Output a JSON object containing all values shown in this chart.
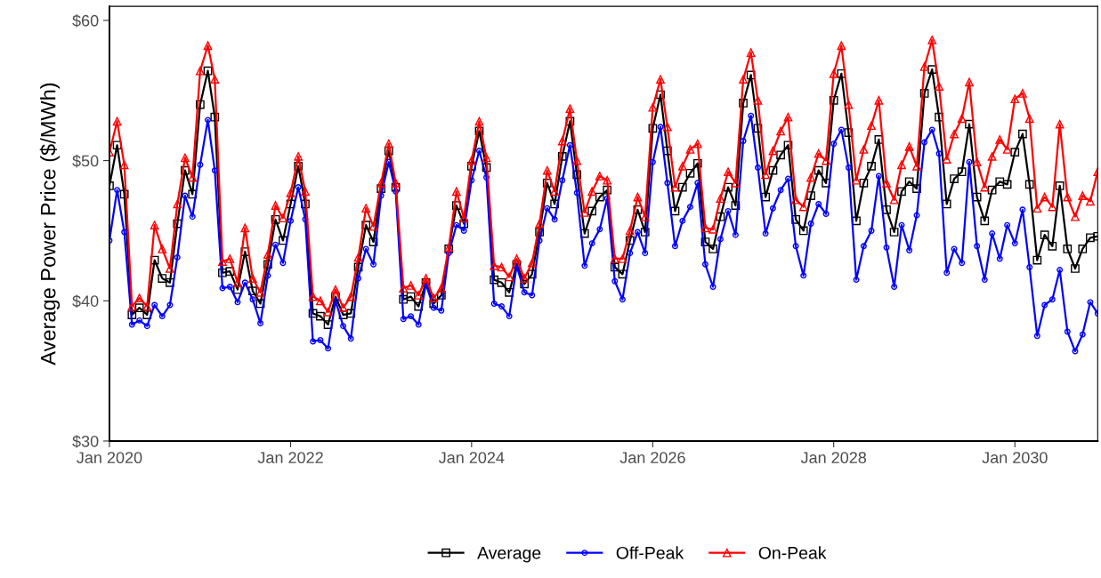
{
  "chart_data": {
    "type": "line",
    "ylabel": "Average Power Price ($/MWh)",
    "x": [
      "2020-01",
      "2020-02",
      "2020-03",
      "2020-04",
      "2020-05",
      "2020-06",
      "2020-07",
      "2020-08",
      "2020-09",
      "2020-10",
      "2020-11",
      "2020-12",
      "2021-01",
      "2021-02",
      "2021-03",
      "2021-04",
      "2021-05",
      "2021-06",
      "2021-07",
      "2021-08",
      "2021-09",
      "2021-10",
      "2021-11",
      "2021-12",
      "2022-01",
      "2022-02",
      "2022-03",
      "2022-04",
      "2022-05",
      "2022-06",
      "2022-07",
      "2022-08",
      "2022-09",
      "2022-10",
      "2022-11",
      "2022-12",
      "2023-01",
      "2023-02",
      "2023-03",
      "2023-04",
      "2023-05",
      "2023-06",
      "2023-07",
      "2023-08",
      "2023-09",
      "2023-10",
      "2023-11",
      "2023-12",
      "2024-01",
      "2024-02",
      "2024-03",
      "2024-04",
      "2024-05",
      "2024-06",
      "2024-07",
      "2024-08",
      "2024-09",
      "2024-10",
      "2024-11",
      "2024-12",
      "2025-01",
      "2025-02",
      "2025-03",
      "2025-04",
      "2025-05",
      "2025-06",
      "2025-07",
      "2025-08",
      "2025-09",
      "2025-10",
      "2025-11",
      "2025-12",
      "2026-01",
      "2026-02",
      "2026-03",
      "2026-04",
      "2026-05",
      "2026-06",
      "2026-07",
      "2026-08",
      "2026-09",
      "2026-10",
      "2026-11",
      "2026-12",
      "2027-01",
      "2027-02",
      "2027-03",
      "2027-04",
      "2027-05",
      "2027-06",
      "2027-07",
      "2027-08",
      "2027-09",
      "2027-10",
      "2027-11",
      "2027-12",
      "2028-01",
      "2028-02",
      "2028-03",
      "2028-04",
      "2028-05",
      "2028-06",
      "2028-07",
      "2028-08",
      "2028-09",
      "2028-10",
      "2028-11",
      "2028-12",
      "2029-01",
      "2029-02",
      "2029-03",
      "2029-04",
      "2029-05",
      "2029-06",
      "2029-07",
      "2029-08",
      "2029-09",
      "2029-10",
      "2029-11",
      "2029-12",
      "2030-01",
      "2030-02",
      "2030-03",
      "2030-04",
      "2030-05",
      "2030-06",
      "2030-07",
      "2030-08",
      "2030-09",
      "2030-10",
      "2030-11",
      "2030-12"
    ],
    "series": [
      {
        "name": "Average",
        "color": "#000000",
        "marker": "square",
        "values": [
          48.2,
          51.1,
          47.6,
          39.0,
          39.5,
          39.0,
          42.9,
          41.6,
          41.3,
          45.5,
          49.3,
          47.6,
          54.0,
          56.4,
          53.1,
          42.0,
          42.1,
          40.8,
          43.5,
          40.7,
          39.8,
          42.6,
          45.8,
          44.3,
          46.9,
          49.6,
          46.9,
          39.1,
          38.9,
          38.3,
          40.3,
          39.0,
          39.1,
          42.4,
          45.4,
          44.2,
          48.0,
          50.7,
          48.1,
          40.1,
          40.3,
          39.6,
          41.3,
          39.8,
          40.4,
          43.7,
          46.8,
          45.5,
          49.6,
          52.1,
          49.5,
          41.5,
          41.3,
          40.6,
          42.6,
          41.2,
          41.9,
          44.9,
          48.4,
          46.9,
          50.3,
          52.8,
          49.0,
          44.8,
          46.4,
          47.4,
          47.9,
          42.4,
          41.9,
          44.3,
          46.5,
          44.9,
          52.3,
          54.7,
          50.7,
          46.4,
          48.1,
          49.1,
          49.8,
          44.2,
          43.7,
          46.0,
          48.1,
          46.8,
          54.1,
          56.1,
          52.3,
          47.4,
          49.3,
          50.4,
          51.1,
          45.8,
          45.0,
          47.5,
          49.3,
          48.4,
          54.3,
          56.2,
          52.0,
          45.7,
          48.4,
          49.6,
          51.5,
          46.5,
          44.9,
          47.8,
          48.5,
          48.0,
          54.8,
          56.5,
          53.1,
          46.9,
          48.7,
          49.2,
          52.6,
          47.4,
          45.7,
          47.9,
          48.5,
          48.3,
          50.6,
          51.9,
          48.3,
          42.9,
          44.7,
          43.9,
          48.2,
          43.7,
          42.3,
          43.7,
          44.5,
          44.6
        ]
      },
      {
        "name": "Off-Peak",
        "color": "#0000ff",
        "marker": "circle",
        "values": [
          44.3,
          47.9,
          44.9,
          38.3,
          38.6,
          38.2,
          39.7,
          38.9,
          39.7,
          43.1,
          47.5,
          46.0,
          49.7,
          52.9,
          49.3,
          40.9,
          41.0,
          39.9,
          41.3,
          40.1,
          38.4,
          41.8,
          44.0,
          42.7,
          45.7,
          48.1,
          45.8,
          37.1,
          37.2,
          36.6,
          40.0,
          38.2,
          37.3,
          41.6,
          43.7,
          42.6,
          47.5,
          49.9,
          47.8,
          38.7,
          38.9,
          38.3,
          41.2,
          39.5,
          39.3,
          43.4,
          45.4,
          45.0,
          48.6,
          50.7,
          48.8,
          39.8,
          39.6,
          38.9,
          42.5,
          40.6,
          40.4,
          44.3,
          46.6,
          45.8,
          48.6,
          51.1,
          47.7,
          42.5,
          44.1,
          45.1,
          47.3,
          41.4,
          40.1,
          43.4,
          44.9,
          43.4,
          49.9,
          52.4,
          48.4,
          43.9,
          45.7,
          46.7,
          48.4,
          42.6,
          41.0,
          44.4,
          46.4,
          44.7,
          51.4,
          53.2,
          49.5,
          44.8,
          46.6,
          47.9,
          48.7,
          43.9,
          41.8,
          45.5,
          46.9,
          46.2,
          51.2,
          52.2,
          49.5,
          41.5,
          43.9,
          45.0,
          48.9,
          43.8,
          41.0,
          45.4,
          43.6,
          46.1,
          51.3,
          52.2,
          50.5,
          42.0,
          43.7,
          42.7,
          49.9,
          43.9,
          41.5,
          44.8,
          43.0,
          45.4,
          44.1,
          46.5,
          42.4,
          37.5,
          39.7,
          40.1,
          42.2,
          37.8,
          36.4,
          37.6,
          39.9,
          39.1
        ]
      },
      {
        "name": "On-Peak",
        "color": "#ff0000",
        "marker": "triangle",
        "values": [
          50.6,
          52.8,
          49.7,
          39.6,
          40.2,
          39.6,
          45.4,
          43.7,
          42.3,
          46.9,
          50.2,
          48.8,
          56.4,
          58.2,
          55.8,
          42.8,
          43.0,
          41.3,
          45.2,
          41.6,
          40.6,
          43.3,
          46.8,
          45.9,
          47.7,
          50.3,
          47.8,
          40.3,
          40.0,
          39.2,
          40.8,
          39.5,
          40.3,
          43.1,
          46.6,
          45.3,
          48.4,
          51.2,
          48.4,
          40.9,
          41.1,
          40.4,
          41.6,
          40.2,
          40.9,
          43.8,
          47.8,
          45.9,
          50.0,
          52.8,
          50.2,
          42.5,
          42.4,
          41.7,
          43.0,
          41.6,
          42.7,
          45.5,
          49.3,
          47.8,
          51.4,
          53.7,
          50.0,
          46.3,
          47.8,
          48.9,
          48.6,
          43.0,
          43.0,
          45.0,
          47.4,
          46.0,
          53.8,
          55.8,
          52.4,
          48.1,
          49.6,
          50.8,
          51.2,
          45.2,
          45.1,
          47.3,
          49.2,
          48.4,
          55.8,
          57.7,
          54.3,
          49.0,
          50.7,
          52.1,
          53.1,
          47.2,
          46.7,
          48.8,
          50.5,
          50.0,
          56.2,
          58.2,
          54.0,
          48.6,
          50.8,
          52.5,
          54.3,
          48.4,
          47.2,
          49.7,
          51.0,
          49.6,
          56.7,
          58.6,
          55.3,
          50.1,
          51.9,
          53.0,
          55.6,
          49.9,
          48.1,
          50.3,
          51.5,
          50.8,
          54.4,
          54.8,
          53.0,
          46.6,
          47.4,
          46.7,
          52.6,
          47.4,
          46.0,
          47.5,
          47.1,
          49.2
        ]
      }
    ],
    "xlim": [
      "2020-01",
      "2030-12"
    ],
    "xticks": [
      {
        "value": "2020-01",
        "label": "Jan 2020"
      },
      {
        "value": "2022-01",
        "label": "Jan 2022"
      },
      {
        "value": "2024-01",
        "label": "Jan 2024"
      },
      {
        "value": "2026-01",
        "label": "Jan 2026"
      },
      {
        "value": "2028-01",
        "label": "Jan 2028"
      },
      {
        "value": "2030-01",
        "label": "Jan 2030"
      }
    ],
    "ylim": [
      30,
      61
    ],
    "yticks": [
      {
        "value": 30,
        "label": "$30"
      },
      {
        "value": 40,
        "label": "$40"
      },
      {
        "value": 50,
        "label": "$50"
      },
      {
        "value": 60,
        "label": "$60"
      }
    ],
    "grid": false,
    "legend": "bottom",
    "line_style": "solid"
  }
}
